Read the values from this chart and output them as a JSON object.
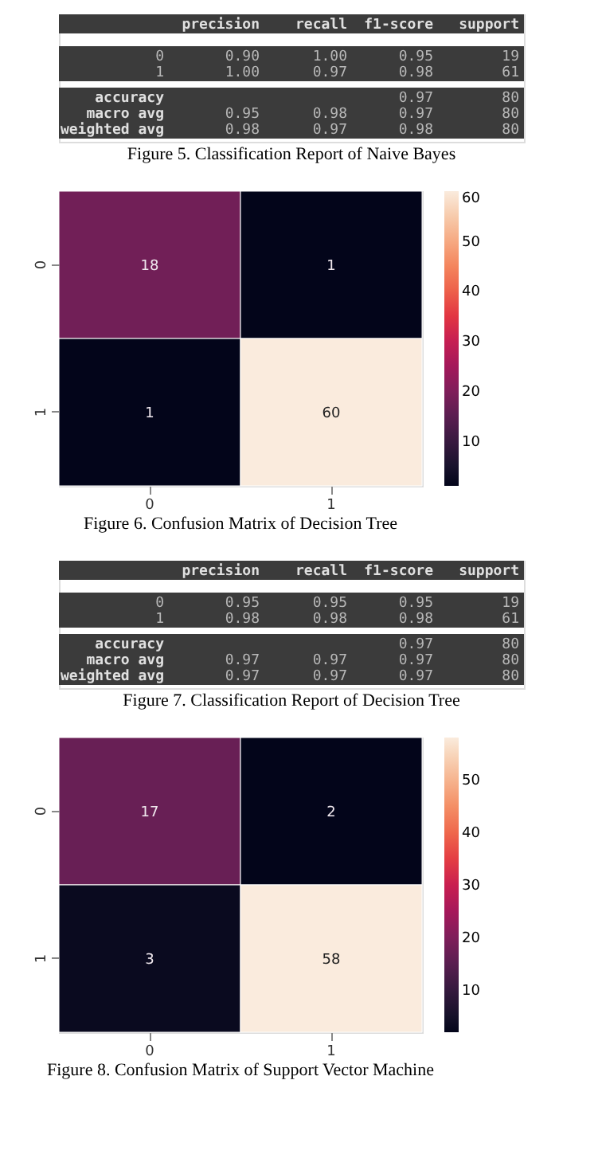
{
  "chart_data": [
    {
      "type": "other",
      "title": "Figure 5.  Classification Report of Naive Bayes",
      "categories": [
        "precision",
        "recall",
        "f1-score",
        "support"
      ],
      "y_categories": [
        "0",
        "1",
        "accuracy",
        "macro avg",
        "weighted avg"
      ],
      "cell_labels": [
        [
          "0.90",
          "1.00",
          "0.95",
          "19"
        ],
        [
          "1.00",
          "0.97",
          "0.98",
          "61"
        ],
        [
          null,
          null,
          "0.97",
          "80"
        ],
        [
          "0.95",
          "0.98",
          "0.97",
          "80"
        ],
        [
          "0.98",
          "0.97",
          "0.98",
          "80"
        ]
      ]
    },
    {
      "type": "heatmap",
      "title": "Figure 6.  Confusion Matrix of Decision Tree",
      "categories": [
        "0",
        "1"
      ],
      "y_categories": [
        "0",
        "1"
      ],
      "cells": [
        [
          18,
          1
        ],
        [
          1,
          60
        ]
      ],
      "data_labels": true,
      "clim": [
        1,
        60
      ],
      "cticks": [
        10,
        20,
        30,
        40,
        50,
        60
      ]
    },
    {
      "type": "other",
      "title": "Figure 7.  Classification Report of Decision Tree",
      "categories": [
        "precision",
        "recall",
        "f1-score",
        "support"
      ],
      "y_categories": [
        "0",
        "1",
        "accuracy",
        "macro avg",
        "weighted avg"
      ],
      "cell_labels": [
        [
          "0.95",
          "0.95",
          "0.95",
          "19"
        ],
        [
          "0.98",
          "0.98",
          "0.98",
          "61"
        ],
        [
          null,
          null,
          "0.97",
          "80"
        ],
        [
          "0.97",
          "0.97",
          "0.97",
          "80"
        ],
        [
          "0.97",
          "0.97",
          "0.97",
          "80"
        ]
      ]
    },
    {
      "type": "heatmap",
      "title": "Figure 8.  Confusion Matrix of Support Vector Machine",
      "categories": [
        "0",
        "1"
      ],
      "y_categories": [
        "0",
        "1"
      ],
      "cells": [
        [
          17,
          2
        ],
        [
          3,
          58
        ]
      ],
      "data_labels": true,
      "clim": [
        2,
        58
      ],
      "cticks": [
        10,
        20,
        30,
        40,
        50
      ]
    }
  ]
}
